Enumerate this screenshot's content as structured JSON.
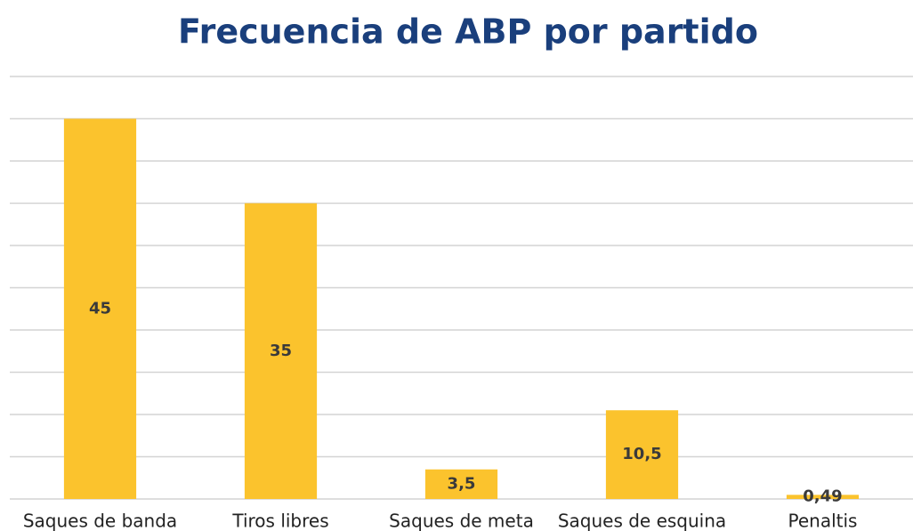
{
  "chart_data": {
    "type": "bar",
    "title": "Frecuencia de ABP por partido",
    "categories": [
      "Saques de banda",
      "Tiros libres",
      "Saques de meta",
      "Saques de esquina",
      "Penaltis"
    ],
    "values": [
      45,
      35,
      3.5,
      10.5,
      0.49
    ],
    "value_labels": [
      "45",
      "35",
      "3,5",
      "10,5",
      "0,49"
    ],
    "color": "#fbc32d",
    "ylim": [
      0,
      50
    ],
    "yticks": [
      0,
      5,
      10,
      15,
      20,
      25,
      30,
      35,
      40,
      45,
      50
    ],
    "grid": true
  }
}
